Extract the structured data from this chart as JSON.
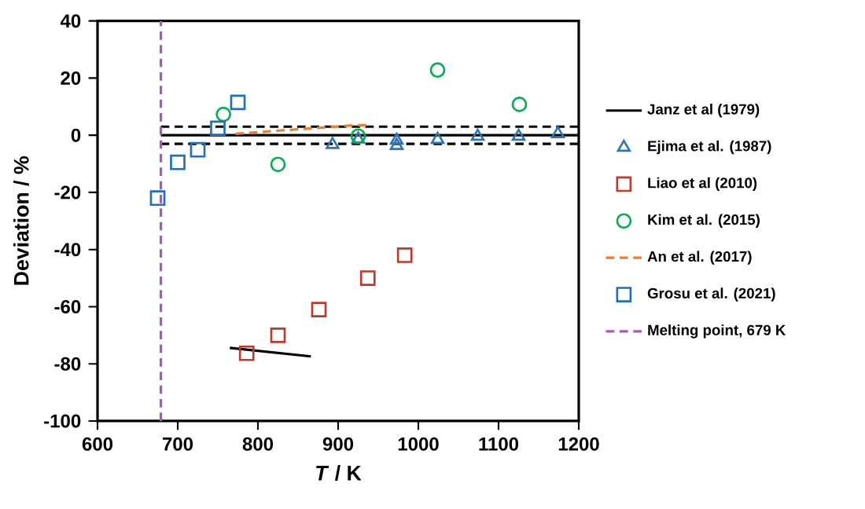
{
  "chart_data": {
    "type": "scatter",
    "xlabel": "*T* / K",
    "ylabel": "Deviation / %",
    "xlim": [
      600,
      1200
    ],
    "ylim": [
      -100,
      40
    ],
    "xticks": [
      600,
      700,
      800,
      900,
      1000,
      1100,
      1200
    ],
    "yticks": [
      -100,
      -80,
      -60,
      -40,
      -20,
      0,
      20,
      40
    ],
    "legend": "right",
    "grid": false,
    "series": [
      {
        "name": "Janz et al (1979)",
        "type": "line",
        "line_style": "solid",
        "marker": "none",
        "color": "#000000",
        "x": [
          679,
          1200
        ],
        "values": [
          0,
          0
        ]
      },
      {
        "type": "line",
        "line_style": "dashed",
        "marker": "none",
        "color": "#000000",
        "x": [
          679,
          1200
        ],
        "values": [
          3,
          3
        ]
      },
      {
        "type": "line",
        "line_style": "dashed",
        "marker": "none",
        "color": "#000000",
        "x": [
          679,
          1200
        ],
        "values": [
          -3,
          -3
        ]
      },
      {
        "type": "line",
        "line_style": "solid",
        "marker": "none",
        "color": "#000000",
        "x": [
          765,
          866
        ],
        "values": [
          -74.4,
          -77.4
        ]
      },
      {
        "name": "Ejima et al. (1987)",
        "marker": "triangle",
        "color": "#2e75b6",
        "x": [
          893,
          925,
          973,
          973,
          1024,
          1074,
          1125,
          1174
        ],
        "values": [
          -3.3,
          -1.4,
          -1.8,
          -3.6,
          -1.5,
          -0.4,
          -0.4,
          0.5
        ]
      },
      {
        "name": "Liao et al (2010)",
        "marker": "square",
        "color": "#c0392b",
        "x": [
          786,
          825,
          876,
          937,
          983
        ],
        "values": [
          -76.3,
          -70,
          -61,
          -50,
          -42
        ]
      },
      {
        "name": "Kim et al. (2015)",
        "marker": "circle",
        "color": "#00b050",
        "x": [
          757,
          825,
          925,
          1024,
          1126
        ],
        "values": [
          7.3,
          -10.2,
          -0.3,
          22.8,
          10.8
        ]
      },
      {
        "name": "An et al. (2017)",
        "type": "line",
        "line_style": "dashed",
        "marker": "none",
        "color": "#ed7d31",
        "x": [
          772,
          820,
          870,
          920,
          935
        ],
        "values": [
          0.5,
          1.5,
          2.5,
          3.5,
          3.5
        ]
      },
      {
        "name": "Grosu et al. (2021)",
        "marker": "square",
        "color": "#1f6fc5",
        "x": [
          675,
          700,
          725,
          750,
          775
        ],
        "values": [
          -22,
          -9.5,
          -5.1,
          2.4,
          11.5
        ]
      },
      {
        "name": "Melting point, 679 K",
        "type": "line",
        "line_style": "dashed",
        "marker": "none",
        "color": "#a05cc0",
        "x": [
          679,
          679
        ],
        "values": [
          -100,
          40
        ]
      }
    ]
  }
}
